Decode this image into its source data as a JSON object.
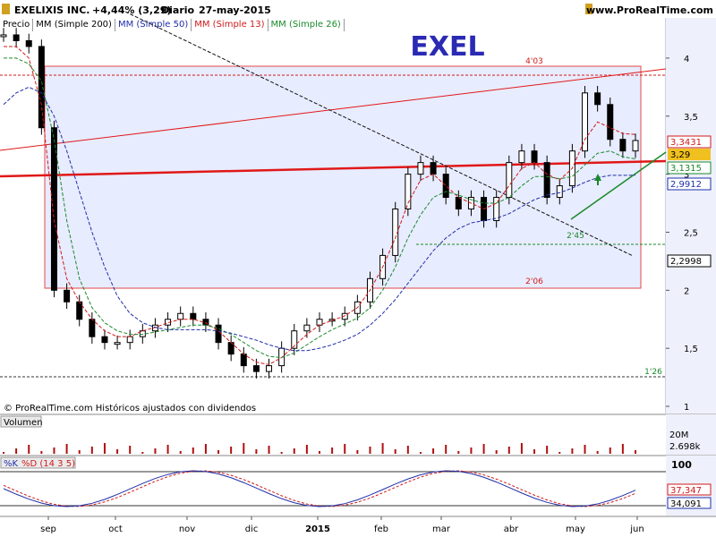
{
  "header": {
    "ticker": "EXELIXIS INC.",
    "change": "+4,44% (3,29)",
    "period": "Diario",
    "date": "27-may-2015",
    "site": "www.ProRealTime.com"
  },
  "legend": [
    {
      "label": "Precio",
      "color": "#000000"
    },
    {
      "label": "MM (Simple 200)",
      "color": "#000000"
    },
    {
      "label": "MM (Simple 50)",
      "color": "#1f2fa8"
    },
    {
      "label": "MM (Simple 13)",
      "color": "#d01a1a"
    },
    {
      "label": "MM (Simple 26)",
      "color": "#1a8a2a"
    }
  ],
  "symbol_title": "EXEL",
  "copyright": "© ProRealTime.com  Históricos ajustados con dividendos",
  "annotations": {
    "top_box": "4'03",
    "bottom_box": "2'06",
    "support": "2'45",
    "low": "1'26"
  },
  "price_badges": {
    "ma13": "3,3431",
    "last": "3,29",
    "ma26": "3,1315",
    "ma50": "2,9912",
    "ma200": "2,2998"
  },
  "volume_panel": {
    "label": "Volumen",
    "max_label": "20M",
    "last": "2.698k"
  },
  "stoch_panel": {
    "label_k": "%K",
    "label_d": "%D (14 3 5)",
    "v1": "37,347",
    "v2": "34,091",
    "top": "100"
  },
  "colors": {
    "accent": "#2a2ab4",
    "red": "#e01818",
    "green": "#1a8a2a",
    "box_fill": "#e8ecff",
    "box_border": "#e04a4a"
  },
  "chart_data": {
    "type": "candlestick",
    "title": "EXEL",
    "y_ticks": [
      1,
      1.5,
      2,
      2.5,
      3,
      3.5,
      4
    ],
    "ylim": [
      1,
      4.3
    ],
    "x_ticks": [
      "sep",
      "oct",
      "nov",
      "dic",
      "2015",
      "feb",
      "mar",
      "abr",
      "may",
      "jun"
    ],
    "closes": [
      4.2,
      4.15,
      4.1,
      3.4,
      2.0,
      1.9,
      1.75,
      1.6,
      1.55,
      1.55,
      1.6,
      1.65,
      1.7,
      1.75,
      1.8,
      1.75,
      1.7,
      1.55,
      1.45,
      1.35,
      1.3,
      1.35,
      1.5,
      1.65,
      1.7,
      1.75,
      1.75,
      1.8,
      1.9,
      2.1,
      2.3,
      2.7,
      3.0,
      3.1,
      3.0,
      2.8,
      2.7,
      2.8,
      2.6,
      2.8,
      3.1,
      3.2,
      3.1,
      2.8,
      2.9,
      3.2,
      3.7,
      3.6,
      3.3,
      3.2,
      3.29
    ],
    "ma13": [
      4.1,
      4.1,
      4.0,
      3.6,
      2.6,
      2.1,
      1.9,
      1.75,
      1.65,
      1.6,
      1.6,
      1.65,
      1.68,
      1.72,
      1.75,
      1.75,
      1.72,
      1.65,
      1.55,
      1.45,
      1.38,
      1.36,
      1.42,
      1.52,
      1.62,
      1.7,
      1.74,
      1.78,
      1.85,
      2.0,
      2.2,
      2.45,
      2.75,
      2.95,
      3.0,
      2.9,
      2.8,
      2.75,
      2.7,
      2.75,
      2.9,
      3.05,
      3.1,
      3.0,
      2.95,
      3.05,
      3.3,
      3.45,
      3.4,
      3.35,
      3.3431
    ],
    "ma26": [
      4.0,
      4.0,
      3.95,
      3.8,
      3.3,
      2.6,
      2.1,
      1.85,
      1.72,
      1.65,
      1.62,
      1.62,
      1.64,
      1.66,
      1.68,
      1.7,
      1.7,
      1.67,
      1.62,
      1.55,
      1.48,
      1.43,
      1.42,
      1.46,
      1.53,
      1.6,
      1.66,
      1.71,
      1.76,
      1.85,
      2.0,
      2.2,
      2.45,
      2.65,
      2.8,
      2.85,
      2.82,
      2.78,
      2.75,
      2.75,
      2.8,
      2.9,
      2.98,
      2.98,
      2.96,
      2.98,
      3.08,
      3.18,
      3.2,
      3.15,
      3.1315
    ],
    "ma50": [
      3.6,
      3.7,
      3.75,
      3.7,
      3.5,
      3.2,
      2.85,
      2.5,
      2.2,
      1.95,
      1.8,
      1.72,
      1.68,
      1.66,
      1.66,
      1.66,
      1.66,
      1.65,
      1.63,
      1.6,
      1.57,
      1.53,
      1.5,
      1.48,
      1.48,
      1.5,
      1.53,
      1.57,
      1.62,
      1.7,
      1.8,
      1.92,
      2.06,
      2.2,
      2.34,
      2.45,
      2.53,
      2.58,
      2.6,
      2.62,
      2.66,
      2.72,
      2.78,
      2.82,
      2.84,
      2.88,
      2.93,
      2.97,
      2.99,
      2.99,
      2.9912
    ],
    "ma200_label": "MM (Simple 200)",
    "hlines": [
      4.03,
      2.45,
      2.06,
      1.26
    ]
  }
}
